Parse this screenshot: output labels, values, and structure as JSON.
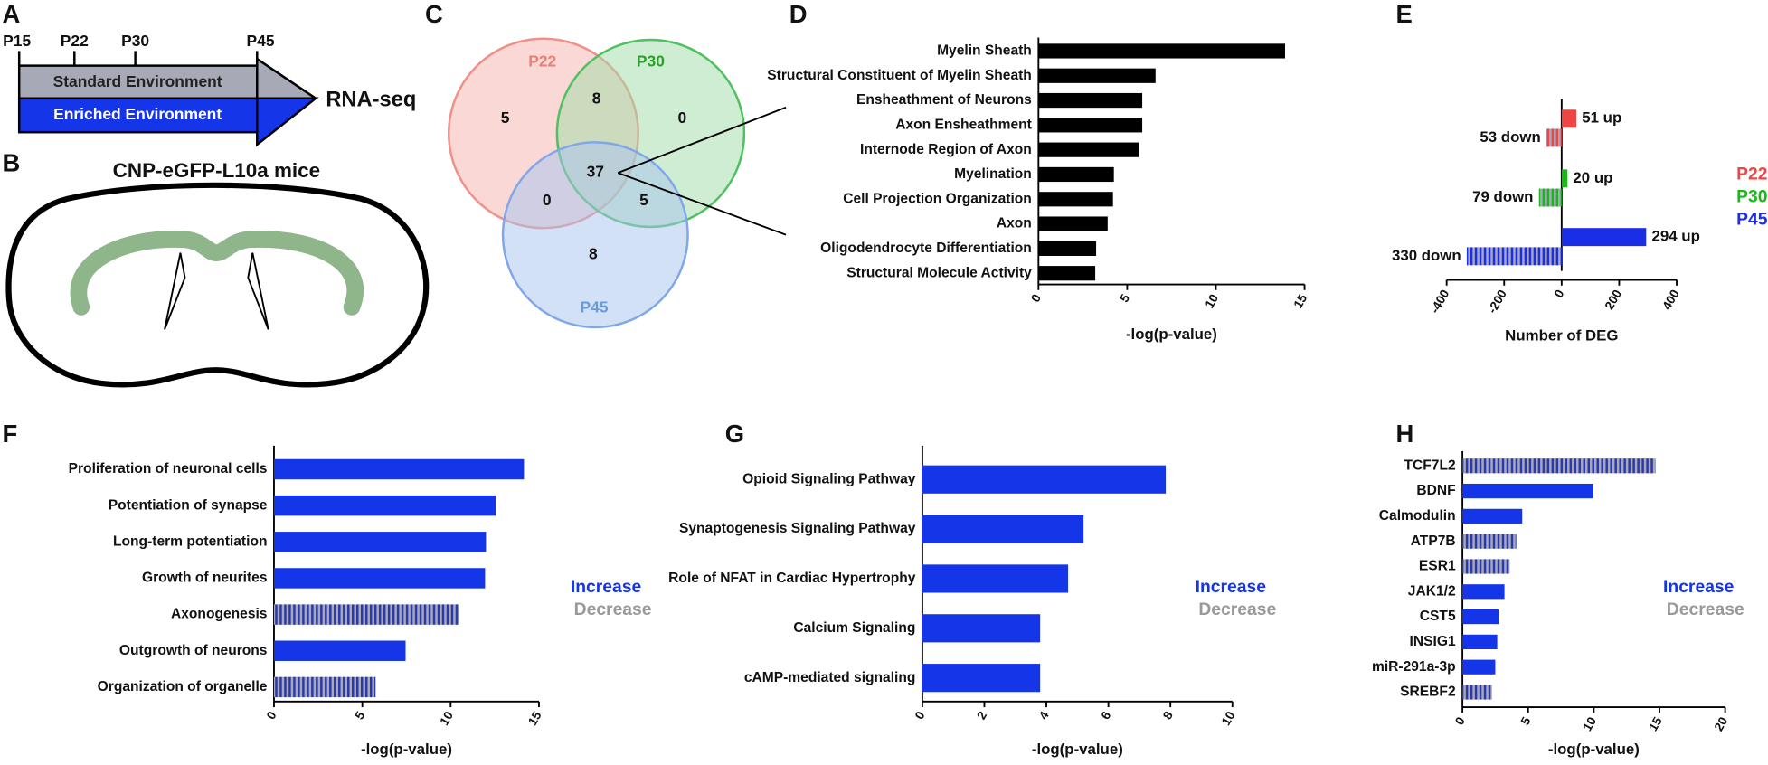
{
  "panel_labels": [
    "A",
    "B",
    "C",
    "D",
    "E",
    "F",
    "G",
    "H"
  ],
  "timeline": {
    "ticks": [
      "P15",
      "P22",
      "P30",
      "P45"
    ],
    "standard": "Standard Environment",
    "enriched": "Enriched Environment",
    "output": "RNA-seq"
  },
  "brain": {
    "title": "CNP-eGFP-L10a mice"
  },
  "venn": {
    "sets": [
      "P22",
      "P30",
      "P45"
    ],
    "counts": [
      5,
      8,
      0,
      37,
      0,
      5,
      8
    ]
  },
  "chart_data": [
    {
      "type": "barh",
      "categories": [
        "Myelin Sheath",
        "Structural Constituent of Myelin Sheath",
        "Ensheathment of Neurons",
        "Axon Ensheathment",
        "Internode Region of Axon",
        "Myelination",
        "Cell Projection Organization",
        "Axon",
        "Oligodendrocyte Differentiation",
        "Structural Molecule Activity"
      ],
      "values": [
        13.9,
        6.6,
        5.85,
        5.85,
        5.65,
        4.25,
        4.2,
        3.9,
        3.25,
        3.2
      ],
      "color": "#000000",
      "xlim": [
        0,
        15
      ],
      "xticks": [
        0,
        5,
        10,
        15
      ],
      "xlabel": "-log(p-value)"
    },
    {
      "type": "diverging",
      "xlim": [
        -400,
        400
      ],
      "xticks": [
        -400,
        -200,
        0,
        200,
        400
      ],
      "xlabel": "Number of DEG",
      "series": [
        {
          "name": "P22",
          "color": "#f04545",
          "values": [
            51,
            -53
          ],
          "value_labels": [
            "51 up",
            "53 down"
          ]
        },
        {
          "name": "P30",
          "color": "#18b818",
          "values": [
            20,
            -79
          ],
          "value_labels": [
            "20 up",
            "79 down"
          ]
        },
        {
          "name": "P45",
          "color": "#1a2ee8",
          "values": [
            294,
            -330
          ],
          "value_labels": [
            "294 up",
            "330 down"
          ]
        }
      ]
    },
    {
      "type": "barh",
      "categories": [
        "Proliferation of neuronal cells",
        "Potentiation of synapse",
        "Long-term potentiation",
        "Growth of neurites",
        "Axonogenesis",
        "Outgrowth of neurons",
        "Organization of organelle"
      ],
      "series": [
        {
          "name": "Increase",
          "color": "#1535e8",
          "values": [
            14.15,
            12.55,
            12.0,
            11.95,
            null,
            7.45,
            null
          ]
        },
        {
          "name": "Decrease",
          "color": "#999999",
          "hatch": true,
          "values": [
            null,
            null,
            null,
            null,
            10.45,
            null,
            5.75
          ]
        }
      ],
      "xlim": [
        0,
        15
      ],
      "xticks": [
        0,
        5,
        10,
        15
      ],
      "xlabel": "-log(p-value)"
    },
    {
      "type": "barh",
      "categories": [
        "Opioid Signaling Pathway",
        "Synaptogenesis Signaling Pathway",
        "Role of NFAT in Cardiac Hypertrophy",
        "Calcium Signaling",
        "cAMP-mediated signaling"
      ],
      "series": [
        {
          "name": "Increase",
          "color": "#1535e8",
          "values": [
            7.85,
            5.2,
            4.7,
            3.8,
            3.8
          ]
        },
        {
          "name": "Decrease",
          "color": "#999999",
          "hatch": true,
          "values": [
            null,
            null,
            null,
            null,
            null
          ]
        }
      ],
      "xlim": [
        0,
        10
      ],
      "xticks": [
        0,
        2,
        4,
        6,
        8,
        10
      ],
      "xlabel": "-log(p-value)"
    },
    {
      "type": "barh",
      "categories": [
        "TCF7L2",
        "BDNF",
        "Calmodulin",
        "ATP7B",
        "ESR1",
        "JAK1/2",
        "CST5",
        "INSIG1",
        "miR-291a-3p",
        "SREBF2"
      ],
      "series": [
        {
          "name": "Increase",
          "color": "#1535e8",
          "values": [
            null,
            9.95,
            4.55,
            null,
            null,
            3.2,
            2.75,
            2.65,
            2.5,
            null
          ]
        },
        {
          "name": "Decrease",
          "color": "#999999",
          "hatch": true,
          "values": [
            14.7,
            null,
            null,
            4.1,
            3.6,
            null,
            null,
            null,
            null,
            2.25
          ]
        }
      ],
      "xlim": [
        0,
        20
      ],
      "xticks": [
        0,
        5,
        10,
        15,
        20
      ],
      "xlabel": "-log(p-value)"
    }
  ]
}
